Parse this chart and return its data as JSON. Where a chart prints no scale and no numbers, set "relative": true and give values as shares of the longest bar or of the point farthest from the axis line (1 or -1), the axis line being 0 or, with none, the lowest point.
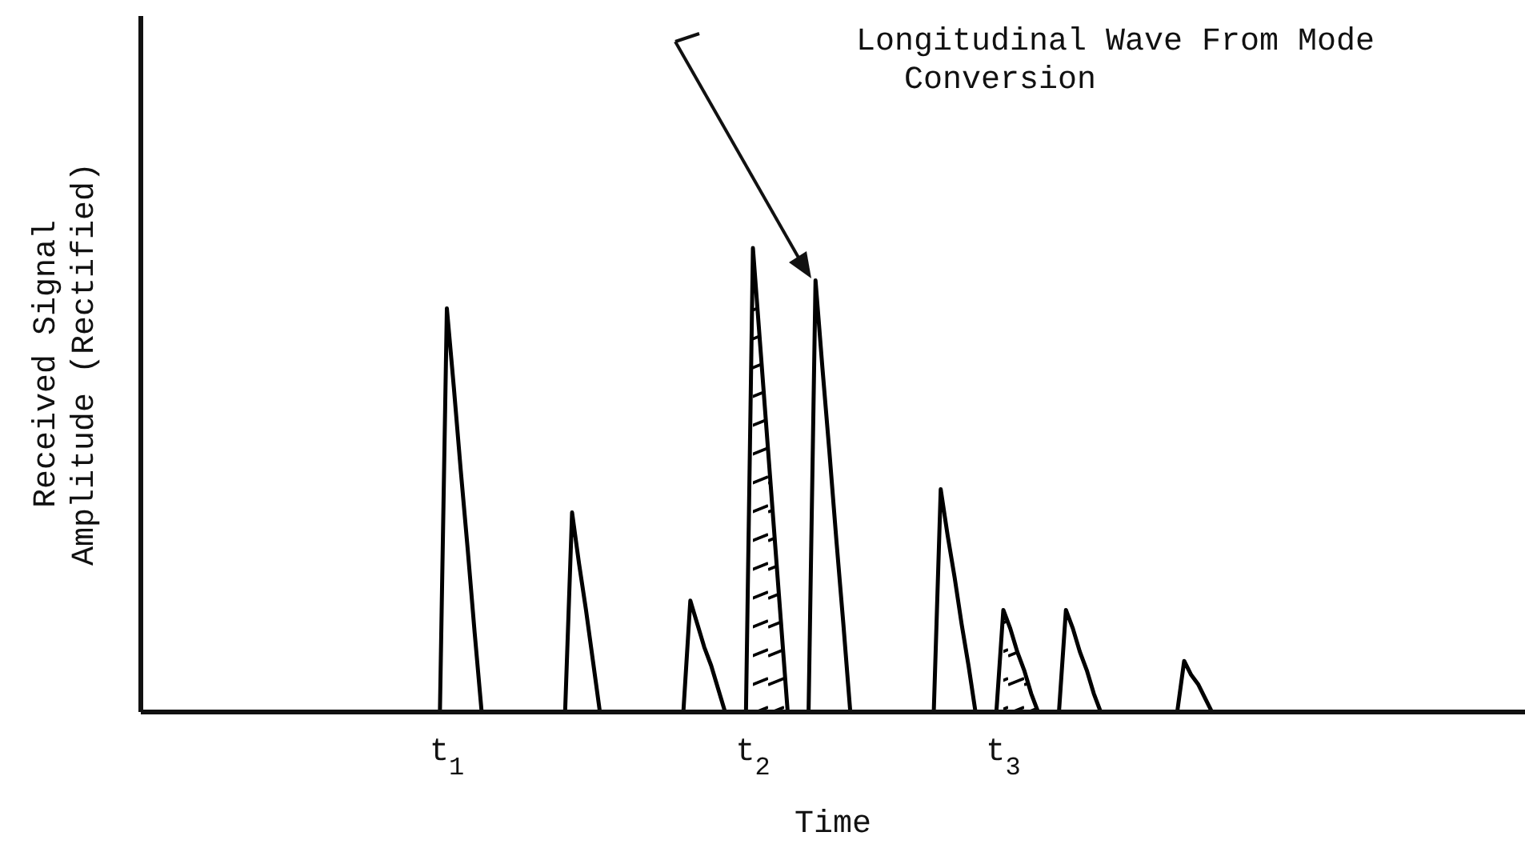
{
  "chart_data": {
    "type": "line",
    "xlabel": "Time",
    "ylabel": "Received Signal Amplitude (Rectified)",
    "relative": true,
    "marker": "none",
    "line_style": "solid",
    "categories": [
      null,
      null,
      null,
      null,
      null,
      null,
      null,
      null,
      null,
      null,
      null,
      null,
      null,
      null,
      null,
      null,
      null,
      null,
      null,
      null,
      null,
      null,
      null,
      null,
      null,
      null,
      null,
      null,
      null,
      null,
      null,
      null,
      null,
      null,
      null,
      null,
      null,
      null,
      null,
      null,
      null,
      null,
      null,
      null,
      "t$_{1}$",
      null,
      null,
      null,
      null,
      null,
      null,
      null,
      null,
      null,
      null,
      null,
      null,
      null,
      null,
      null,
      null,
      null,
      null,
      null,
      null,
      null,
      null,
      null,
      null,
      null,
      null,
      null,
      null,
      null,
      null,
      null,
      null,
      null,
      null,
      null,
      null,
      null,
      null,
      null,
      null,
      null,
      null,
      null,
      "t$_{2}$",
      null,
      null,
      null,
      null,
      null,
      null,
      null,
      null,
      null,
      null,
      null,
      null,
      null,
      null,
      null,
      null,
      null,
      null,
      null,
      null,
      null,
      null,
      null,
      null,
      null,
      null,
      null,
      null,
      null,
      null,
      null,
      null,
      null,
      null,
      null,
      "t$_{3}$",
      null,
      null,
      null,
      null,
      null,
      null,
      null,
      null,
      null,
      null,
      null,
      null,
      null,
      null,
      null,
      null,
      null,
      null,
      null,
      null,
      null,
      null,
      null,
      null,
      null,
      null,
      null,
      null,
      null,
      null,
      null,
      null,
      null,
      null,
      null,
      null,
      null,
      null,
      null,
      null,
      null,
      null,
      null,
      null,
      null,
      null,
      null,
      null,
      null,
      null,
      null,
      null,
      null,
      null,
      null,
      null,
      null,
      null,
      null,
      null,
      null,
      null,
      null,
      null,
      null,
      null,
      null,
      null,
      null,
      null,
      null,
      null,
      null,
      null,
      null
    ],
    "series": [
      {
        "color": "#000000",
        "values": [
          0,
          0,
          0,
          0,
          0,
          0,
          0,
          0,
          0,
          0,
          0,
          0,
          0,
          0,
          0,
          0,
          0,
          0,
          0,
          0,
          0,
          0,
          0,
          0,
          0,
          0,
          0,
          0,
          0,
          0,
          0,
          0,
          0,
          0,
          0,
          0,
          0,
          0,
          0,
          0,
          0,
          0,
          0,
          0,
          0.87,
          0.7,
          0.52,
          0.35,
          0.17,
          0,
          0,
          0,
          0,
          0,
          0,
          0,
          0,
          0,
          0,
          0,
          0,
          0,
          0.43,
          0.32,
          0.22,
          0.11,
          0,
          0,
          0,
          0,
          0,
          0,
          0,
          0,
          0,
          0,
          0,
          0,
          0,
          0.24,
          0.19,
          0.14,
          0.1,
          0.05,
          0,
          0,
          0,
          0,
          1,
          0.8,
          0.6,
          0.4,
          0.2,
          0,
          0,
          0,
          0,
          0.93,
          0.74,
          0.56,
          0.37,
          0.19,
          0,
          0,
          0,
          0,
          0,
          0,
          0,
          0,
          0,
          0,
          0,
          0,
          0,
          0.48,
          0.38,
          0.29,
          0.19,
          0.1,
          0,
          0,
          0,
          0,
          0.22,
          0.18,
          0.13,
          0.09,
          0.04,
          0,
          0,
          0,
          0,
          0.22,
          0.18,
          0.13,
          0.09,
          0.04,
          0,
          0,
          0,
          0,
          0,
          0,
          0,
          0,
          0,
          0,
          0,
          0,
          0.11,
          0.08,
          0.06,
          0.03,
          0,
          0,
          0,
          0,
          0,
          0,
          0,
          0,
          0,
          0,
          0,
          0,
          0,
          0,
          0,
          0,
          0,
          0,
          0,
          0,
          0,
          0,
          0,
          0,
          0,
          0,
          0,
          0,
          0,
          0,
          0,
          0,
          0,
          0,
          0,
          0,
          0,
          0,
          0,
          0,
          0,
          0,
          0,
          0,
          0,
          0
        ]
      },
      {
        "type": "area",
        "color": "#000000",
        "values": [
          null,
          null,
          null,
          null,
          null,
          null,
          null,
          null,
          null,
          null,
          null,
          null,
          null,
          null,
          null,
          null,
          null,
          null,
          null,
          null,
          null,
          null,
          null,
          null,
          null,
          null,
          null,
          null,
          null,
          null,
          null,
          null,
          null,
          null,
          null,
          null,
          null,
          null,
          null,
          null,
          null,
          null,
          null,
          null,
          null,
          null,
          null,
          null,
          null,
          null,
          null,
          null,
          null,
          null,
          null,
          null,
          null,
          null,
          null,
          null,
          null,
          null,
          null,
          null,
          null,
          null,
          null,
          null,
          null,
          null,
          null,
          null,
          null,
          null,
          null,
          null,
          null,
          null,
          null,
          null,
          null,
          null,
          null,
          null,
          null,
          null,
          null,
          null,
          1,
          0.8,
          0.6,
          0.4,
          0.2,
          0,
          null,
          null,
          null,
          null,
          null,
          null,
          null,
          null,
          null,
          null,
          null,
          null,
          null,
          null,
          null,
          null,
          null,
          null,
          null,
          null,
          null,
          null,
          null,
          null,
          null,
          null,
          null,
          null,
          null,
          null,
          0.22,
          0.18,
          0.13,
          0.09,
          0.04,
          0,
          null,
          null,
          null,
          null,
          null,
          null,
          null,
          null,
          null,
          null,
          null,
          null,
          null,
          null,
          null,
          null,
          null,
          null,
          null,
          null,
          null,
          null,
          null,
          null,
          null,
          null,
          null,
          null,
          null,
          null,
          null,
          null,
          null,
          null,
          null,
          null,
          null,
          null,
          null,
          null,
          null,
          null,
          null,
          null,
          null,
          null,
          null,
          null,
          null,
          null,
          null,
          null,
          null,
          null,
          null,
          null,
          null,
          null,
          null,
          null,
          null,
          null,
          null,
          null,
          null,
          null,
          null,
          null,
          null,
          null
        ]
      }
    ],
    "annotations": [
      "Longitudinal Wave From Mode Conversion"
    ]
  }
}
